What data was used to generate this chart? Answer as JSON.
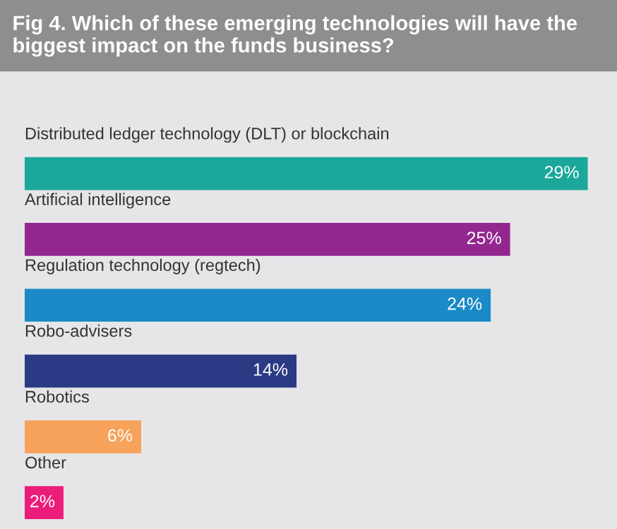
{
  "chart_data": {
    "type": "bar",
    "orientation": "horizontal",
    "title": "Fig 4. Which of these emerging technologies will have the biggest impact on the funds business?",
    "categories": [
      "Distributed ledger technology (DLT) or blockchain",
      "Artificial intelligence",
      "Regulation technology (regtech)",
      "Robo-advisers",
      "Robotics",
      "Other"
    ],
    "values": [
      29,
      25,
      24,
      14,
      6,
      2
    ],
    "colors": [
      "#1ba89b",
      "#93278f",
      "#1b8ac6",
      "#2b3a84",
      "#f7a35c",
      "#ec1c7a"
    ],
    "value_labels": [
      "29%",
      "25%",
      "24%",
      "14%",
      "6%",
      "2%"
    ],
    "tick_labels": false,
    "legend": false
  }
}
